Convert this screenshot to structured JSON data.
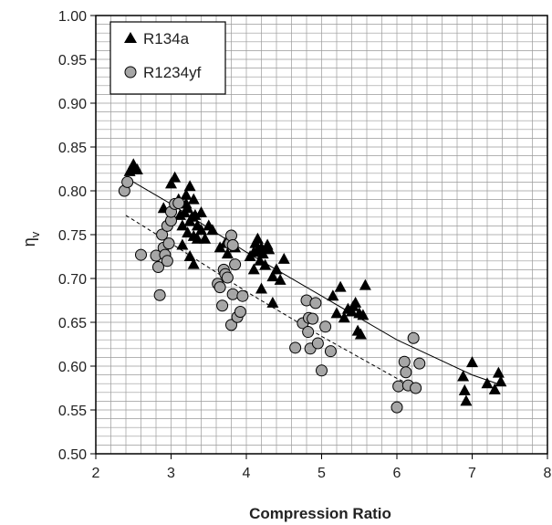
{
  "chart_data": {
    "type": "scatter",
    "title": "",
    "xlabel": "Compression Ratio",
    "ylabel": "η",
    "ylabel_sub": "v",
    "xlim": [
      2,
      8
    ],
    "ylim": [
      0.5,
      1.0
    ],
    "x_ticks": [
      "2",
      "3",
      "4",
      "5",
      "6",
      "7",
      "8"
    ],
    "y_ticks": [
      "0.50",
      "0.55",
      "0.60",
      "0.65",
      "0.70",
      "0.75",
      "0.80",
      "0.85",
      "0.90",
      "0.95",
      "1.00"
    ],
    "grid": true,
    "legend_position": "top-left",
    "series": [
      {
        "name": "R134a",
        "marker": "triangle",
        "color": "#000000",
        "points": [
          [
            2.45,
            0.822
          ],
          [
            2.5,
            0.83
          ],
          [
            2.52,
            0.826
          ],
          [
            2.55,
            0.824
          ],
          [
            2.9,
            0.78
          ],
          [
            3.0,
            0.808
          ],
          [
            3.05,
            0.815
          ],
          [
            3.1,
            0.79
          ],
          [
            3.12,
            0.772
          ],
          [
            3.15,
            0.738
          ],
          [
            3.15,
            0.76
          ],
          [
            3.18,
            0.775
          ],
          [
            3.2,
            0.785
          ],
          [
            3.2,
            0.795
          ],
          [
            3.22,
            0.78
          ],
          [
            3.22,
            0.752
          ],
          [
            3.25,
            0.805
          ],
          [
            3.25,
            0.765
          ],
          [
            3.25,
            0.725
          ],
          [
            3.28,
            0.77
          ],
          [
            3.3,
            0.79
          ],
          [
            3.3,
            0.748
          ],
          [
            3.3,
            0.716
          ],
          [
            3.32,
            0.772
          ],
          [
            3.35,
            0.76
          ],
          [
            3.35,
            0.745
          ],
          [
            3.4,
            0.775
          ],
          [
            3.4,
            0.755
          ],
          [
            3.45,
            0.745
          ],
          [
            3.5,
            0.76
          ],
          [
            3.55,
            0.755
          ],
          [
            3.65,
            0.735
          ],
          [
            3.72,
            0.74
          ],
          [
            3.75,
            0.728
          ],
          [
            3.85,
            0.735
          ],
          [
            4.05,
            0.725
          ],
          [
            4.1,
            0.73
          ],
          [
            4.1,
            0.71
          ],
          [
            4.12,
            0.74
          ],
          [
            4.15,
            0.745
          ],
          [
            4.15,
            0.732
          ],
          [
            4.18,
            0.72
          ],
          [
            4.2,
            0.735
          ],
          [
            4.2,
            0.688
          ],
          [
            4.22,
            0.728
          ],
          [
            4.25,
            0.715
          ],
          [
            4.28,
            0.738
          ],
          [
            4.3,
            0.733
          ],
          [
            4.35,
            0.702
          ],
          [
            4.35,
            0.672
          ],
          [
            4.4,
            0.71
          ],
          [
            4.45,
            0.698
          ],
          [
            4.5,
            0.722
          ],
          [
            5.15,
            0.68
          ],
          [
            5.2,
            0.66
          ],
          [
            5.25,
            0.69
          ],
          [
            5.3,
            0.655
          ],
          [
            5.35,
            0.665
          ],
          [
            5.4,
            0.662
          ],
          [
            5.42,
            0.668
          ],
          [
            5.45,
            0.672
          ],
          [
            5.48,
            0.64
          ],
          [
            5.5,
            0.66
          ],
          [
            5.52,
            0.636
          ],
          [
            5.55,
            0.658
          ],
          [
            5.58,
            0.692
          ],
          [
            6.88,
            0.588
          ],
          [
            6.9,
            0.572
          ],
          [
            6.92,
            0.56
          ],
          [
            7.0,
            0.604
          ],
          [
            7.2,
            0.58
          ],
          [
            7.3,
            0.573
          ],
          [
            7.35,
            0.592
          ],
          [
            7.38,
            0.582
          ]
        ],
        "trend": [
          [
            2.4,
            0.815
          ],
          [
            3.0,
            0.785
          ],
          [
            4.0,
            0.73
          ],
          [
            5.0,
            0.68
          ],
          [
            6.0,
            0.63
          ],
          [
            7.0,
            0.59
          ],
          [
            7.4,
            0.578
          ]
        ],
        "trend_style": "solid"
      },
      {
        "name": "R1234yf",
        "marker": "circle",
        "color": "#a6a6a6",
        "points": [
          [
            2.38,
            0.8
          ],
          [
            2.42,
            0.81
          ],
          [
            2.6,
            0.727
          ],
          [
            2.8,
            0.726
          ],
          [
            2.83,
            0.713
          ],
          [
            2.85,
            0.681
          ],
          [
            2.88,
            0.75
          ],
          [
            2.9,
            0.735
          ],
          [
            2.92,
            0.727
          ],
          [
            2.95,
            0.72
          ],
          [
            2.95,
            0.76
          ],
          [
            2.97,
            0.74
          ],
          [
            3.0,
            0.766
          ],
          [
            3.0,
            0.776
          ],
          [
            3.05,
            0.785
          ],
          [
            3.1,
            0.786
          ],
          [
            3.62,
            0.694
          ],
          [
            3.65,
            0.69
          ],
          [
            3.68,
            0.669
          ],
          [
            3.7,
            0.71
          ],
          [
            3.72,
            0.705
          ],
          [
            3.75,
            0.701
          ],
          [
            3.78,
            0.74
          ],
          [
            3.8,
            0.749
          ],
          [
            3.8,
            0.647
          ],
          [
            3.82,
            0.738
          ],
          [
            3.82,
            0.682
          ],
          [
            3.85,
            0.716
          ],
          [
            3.88,
            0.656
          ],
          [
            3.92,
            0.662
          ],
          [
            3.95,
            0.68
          ],
          [
            4.65,
            0.621
          ],
          [
            4.75,
            0.649
          ],
          [
            4.8,
            0.675
          ],
          [
            4.82,
            0.639
          ],
          [
            4.83,
            0.655
          ],
          [
            4.85,
            0.62
          ],
          [
            4.88,
            0.654
          ],
          [
            4.92,
            0.672
          ],
          [
            4.95,
            0.626
          ],
          [
            5.0,
            0.595
          ],
          [
            5.05,
            0.645
          ],
          [
            5.12,
            0.617
          ],
          [
            6.0,
            0.553
          ],
          [
            6.02,
            0.577
          ],
          [
            6.1,
            0.605
          ],
          [
            6.12,
            0.593
          ],
          [
            6.15,
            0.578
          ],
          [
            6.22,
            0.632
          ],
          [
            6.25,
            0.575
          ],
          [
            6.3,
            0.603
          ]
        ],
        "trend": [
          [
            2.4,
            0.772
          ],
          [
            3.0,
            0.74
          ],
          [
            4.0,
            0.685
          ],
          [
            5.0,
            0.634
          ],
          [
            6.0,
            0.586
          ],
          [
            6.2,
            0.578
          ]
        ],
        "trend_style": "dashed"
      }
    ]
  }
}
